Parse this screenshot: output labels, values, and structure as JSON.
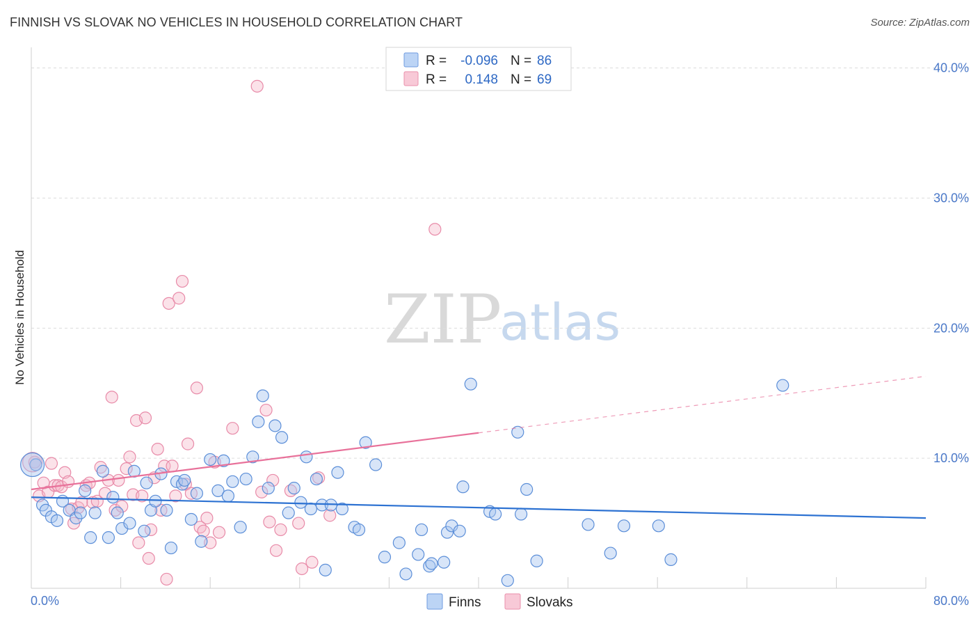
{
  "header": {
    "title": "FINNISH VS SLOVAK NO VEHICLES IN HOUSEHOLD CORRELATION CHART",
    "source": "Source: ZipAtlas.com"
  },
  "legend": {
    "rows": [
      {
        "r_label": "R =",
        "r_value": "-0.096",
        "n_label": "N =",
        "n_value": "86",
        "color": "#a9c6ef"
      },
      {
        "r_label": "R =",
        "r_value": "0.148",
        "n_label": "N =",
        "n_value": "69",
        "color": "#f4b6c8"
      }
    ]
  },
  "bottom_legend": [
    {
      "label": "Finns",
      "color": "#a9c6ef"
    },
    {
      "label": "Slovaks",
      "color": "#f4b6c8"
    }
  ],
  "watermark": {
    "zip": "ZIP",
    "atlas": "atlas"
  },
  "chart_data": {
    "type": "scatter",
    "title": "FINNISH VS SLOVAK NO VEHICLES IN HOUSEHOLD CORRELATION CHART",
    "xlabel": "",
    "ylabel": "No Vehicles in Household",
    "xlim": [
      0,
      80
    ],
    "ylim": [
      0,
      41
    ],
    "x_tick_labels": [
      "0.0%",
      "80.0%"
    ],
    "y_ticks": [
      10,
      20,
      30,
      40
    ],
    "y_tick_labels": [
      "10.0%",
      "20.0%",
      "30.0%",
      "40.0%"
    ],
    "grid": true,
    "legend_position": "top-center",
    "colors": {
      "finns": "#2d72d2",
      "slovaks": "#e8719a"
    },
    "series": [
      {
        "name": "Finns",
        "r": -0.096,
        "n": 86,
        "trend": {
          "x": [
            0,
            80
          ],
          "y": [
            7.0,
            5.4
          ],
          "dashed_from": null
        },
        "points": [
          [
            0.4,
            9.5
          ],
          [
            1.0,
            6.4
          ],
          [
            1.3,
            6.0
          ],
          [
            1.8,
            5.5
          ],
          [
            2.3,
            5.2
          ],
          [
            2.8,
            6.7
          ],
          [
            3.4,
            6.0
          ],
          [
            4.0,
            5.4
          ],
          [
            4.4,
            5.8
          ],
          [
            4.8,
            7.5
          ],
          [
            5.3,
            3.9
          ],
          [
            5.7,
            5.8
          ],
          [
            6.4,
            9.0
          ],
          [
            6.9,
            3.9
          ],
          [
            7.3,
            7.0
          ],
          [
            7.7,
            5.8
          ],
          [
            8.1,
            4.6
          ],
          [
            8.8,
            5.0
          ],
          [
            9.2,
            9.0
          ],
          [
            10.3,
            8.1
          ],
          [
            10.7,
            6.0
          ],
          [
            11.1,
            6.7
          ],
          [
            11.6,
            8.8
          ],
          [
            12.1,
            6.0
          ],
          [
            12.5,
            3.1
          ],
          [
            13.0,
            8.2
          ],
          [
            13.5,
            8.0
          ],
          [
            14.3,
            5.3
          ],
          [
            14.8,
            7.3
          ],
          [
            15.2,
            3.6
          ],
          [
            16.0,
            9.9
          ],
          [
            16.7,
            7.5
          ],
          [
            17.2,
            9.8
          ],
          [
            17.6,
            7.1
          ],
          [
            18.0,
            8.2
          ],
          [
            18.7,
            4.7
          ],
          [
            19.2,
            8.4
          ],
          [
            19.8,
            10.1
          ],
          [
            20.3,
            12.8
          ],
          [
            20.7,
            14.8
          ],
          [
            21.2,
            7.7
          ],
          [
            21.8,
            12.5
          ],
          [
            22.4,
            11.6
          ],
          [
            23.0,
            5.8
          ],
          [
            23.5,
            7.7
          ],
          [
            24.1,
            6.6
          ],
          [
            24.6,
            10.1
          ],
          [
            25.0,
            6.1
          ],
          [
            25.5,
            8.4
          ],
          [
            26.0,
            6.4
          ],
          [
            26.3,
            1.4
          ],
          [
            26.8,
            6.4
          ],
          [
            27.4,
            8.9
          ],
          [
            27.8,
            6.1
          ],
          [
            28.9,
            4.7
          ],
          [
            29.3,
            4.5
          ],
          [
            29.9,
            11.2
          ],
          [
            30.8,
            9.5
          ],
          [
            31.6,
            2.4
          ],
          [
            32.9,
            3.5
          ],
          [
            33.5,
            1.1
          ],
          [
            34.6,
            2.6
          ],
          [
            34.9,
            4.5
          ],
          [
            35.6,
            1.7
          ],
          [
            35.8,
            1.9
          ],
          [
            36.9,
            2.0
          ],
          [
            37.2,
            4.3
          ],
          [
            37.6,
            4.8
          ],
          [
            38.3,
            4.4
          ],
          [
            38.6,
            7.8
          ],
          [
            39.3,
            15.7
          ],
          [
            41.0,
            5.9
          ],
          [
            41.5,
            5.7
          ],
          [
            42.6,
            0.6
          ],
          [
            43.5,
            12.0
          ],
          [
            43.8,
            5.7
          ],
          [
            44.3,
            7.6
          ],
          [
            45.2,
            2.1
          ],
          [
            49.8,
            4.9
          ],
          [
            51.8,
            2.7
          ],
          [
            53.0,
            4.8
          ],
          [
            56.1,
            4.8
          ],
          [
            57.2,
            2.2
          ],
          [
            67.2,
            15.6
          ],
          [
            10.1,
            4.4
          ],
          [
            13.7,
            8.3
          ]
        ]
      },
      {
        "name": "Slovaks",
        "r": 0.148,
        "n": 69,
        "trend": {
          "x": [
            0,
            80
          ],
          "y": [
            7.6,
            16.3
          ],
          "solid_until_x": 40
        },
        "points": [
          [
            0.3,
            9.7
          ],
          [
            0.7,
            7.1
          ],
          [
            1.1,
            8.1
          ],
          [
            1.5,
            7.4
          ],
          [
            1.8,
            9.6
          ],
          [
            2.1,
            7.9
          ],
          [
            2.4,
            7.9
          ],
          [
            2.7,
            7.8
          ],
          [
            3.0,
            8.9
          ],
          [
            3.3,
            8.2
          ],
          [
            3.6,
            6.1
          ],
          [
            3.8,
            5.0
          ],
          [
            4.2,
            6.2
          ],
          [
            4.5,
            6.6
          ],
          [
            4.9,
            7.9
          ],
          [
            5.2,
            8.1
          ],
          [
            5.5,
            6.6
          ],
          [
            5.9,
            6.7
          ],
          [
            6.2,
            9.3
          ],
          [
            6.6,
            7.3
          ],
          [
            6.9,
            8.3
          ],
          [
            7.2,
            14.7
          ],
          [
            7.5,
            6.0
          ],
          [
            7.8,
            8.3
          ],
          [
            8.1,
            6.3
          ],
          [
            8.5,
            9.2
          ],
          [
            8.8,
            10.1
          ],
          [
            9.1,
            7.2
          ],
          [
            9.4,
            12.9
          ],
          [
            9.6,
            3.5
          ],
          [
            9.9,
            7.1
          ],
          [
            10.2,
            13.1
          ],
          [
            10.5,
            2.3
          ],
          [
            10.7,
            4.5
          ],
          [
            11.0,
            8.5
          ],
          [
            11.3,
            10.7
          ],
          [
            11.6,
            6.0
          ],
          [
            11.9,
            9.4
          ],
          [
            12.1,
            0.7
          ],
          [
            12.3,
            21.9
          ],
          [
            12.6,
            9.4
          ],
          [
            12.9,
            7.1
          ],
          [
            13.2,
            22.3
          ],
          [
            13.5,
            23.6
          ],
          [
            13.8,
            8.0
          ],
          [
            14.0,
            11.1
          ],
          [
            14.3,
            7.3
          ],
          [
            14.8,
            15.4
          ],
          [
            15.1,
            4.7
          ],
          [
            15.4,
            4.4
          ],
          [
            15.7,
            5.4
          ],
          [
            16.0,
            3.5
          ],
          [
            16.4,
            9.7
          ],
          [
            16.8,
            4.3
          ],
          [
            18.0,
            12.3
          ],
          [
            20.2,
            38.6
          ],
          [
            20.6,
            7.4
          ],
          [
            21.0,
            13.7
          ],
          [
            21.3,
            5.1
          ],
          [
            21.6,
            8.3
          ],
          [
            21.9,
            2.9
          ],
          [
            22.3,
            4.5
          ],
          [
            23.2,
            7.5
          ],
          [
            23.9,
            5.0
          ],
          [
            24.2,
            1.5
          ],
          [
            25.1,
            2.0
          ],
          [
            25.7,
            8.5
          ],
          [
            26.7,
            5.6
          ],
          [
            36.1,
            27.6
          ]
        ]
      }
    ]
  }
}
